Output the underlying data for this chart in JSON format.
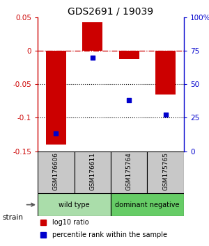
{
  "title": "GDS2691 / 19039",
  "categories": [
    "GSM176606",
    "GSM176611",
    "GSM175764",
    "GSM175765"
  ],
  "log10_ratio": [
    -0.14,
    0.042,
    -0.013,
    -0.065
  ],
  "percentile_rank": [
    13,
    70,
    38,
    27
  ],
  "bar_color": "#cc0000",
  "dot_color": "#0000cc",
  "ylim_left": [
    -0.15,
    0.05
  ],
  "ylim_right": [
    0,
    100
  ],
  "yticks_left": [
    -0.15,
    -0.1,
    -0.05,
    0.0,
    0.05
  ],
  "ytick_labels_left": [
    "-0.15",
    "-0.1",
    "-0.05",
    "0",
    "0.05"
  ],
  "yticks_right": [
    0,
    25,
    50,
    75,
    100
  ],
  "ytick_labels_right": [
    "0",
    "25",
    "50",
    "75",
    "100%"
  ],
  "hline_zero_color": "#cc0000",
  "hline_dots_color": "black",
  "groups": [
    {
      "label": "wild type",
      "columns": [
        0,
        1
      ],
      "color": "#aaddaa"
    },
    {
      "label": "dominant negative",
      "columns": [
        2,
        3
      ],
      "color": "#66cc66"
    }
  ],
  "legend_red_label": "log10 ratio",
  "legend_blue_label": "percentile rank within the sample",
  "left_axis_color": "#cc0000",
  "right_axis_color": "#0000cc",
  "bar_width": 0.55,
  "strain_label": "strain",
  "cell_color": "#c8c8c8"
}
